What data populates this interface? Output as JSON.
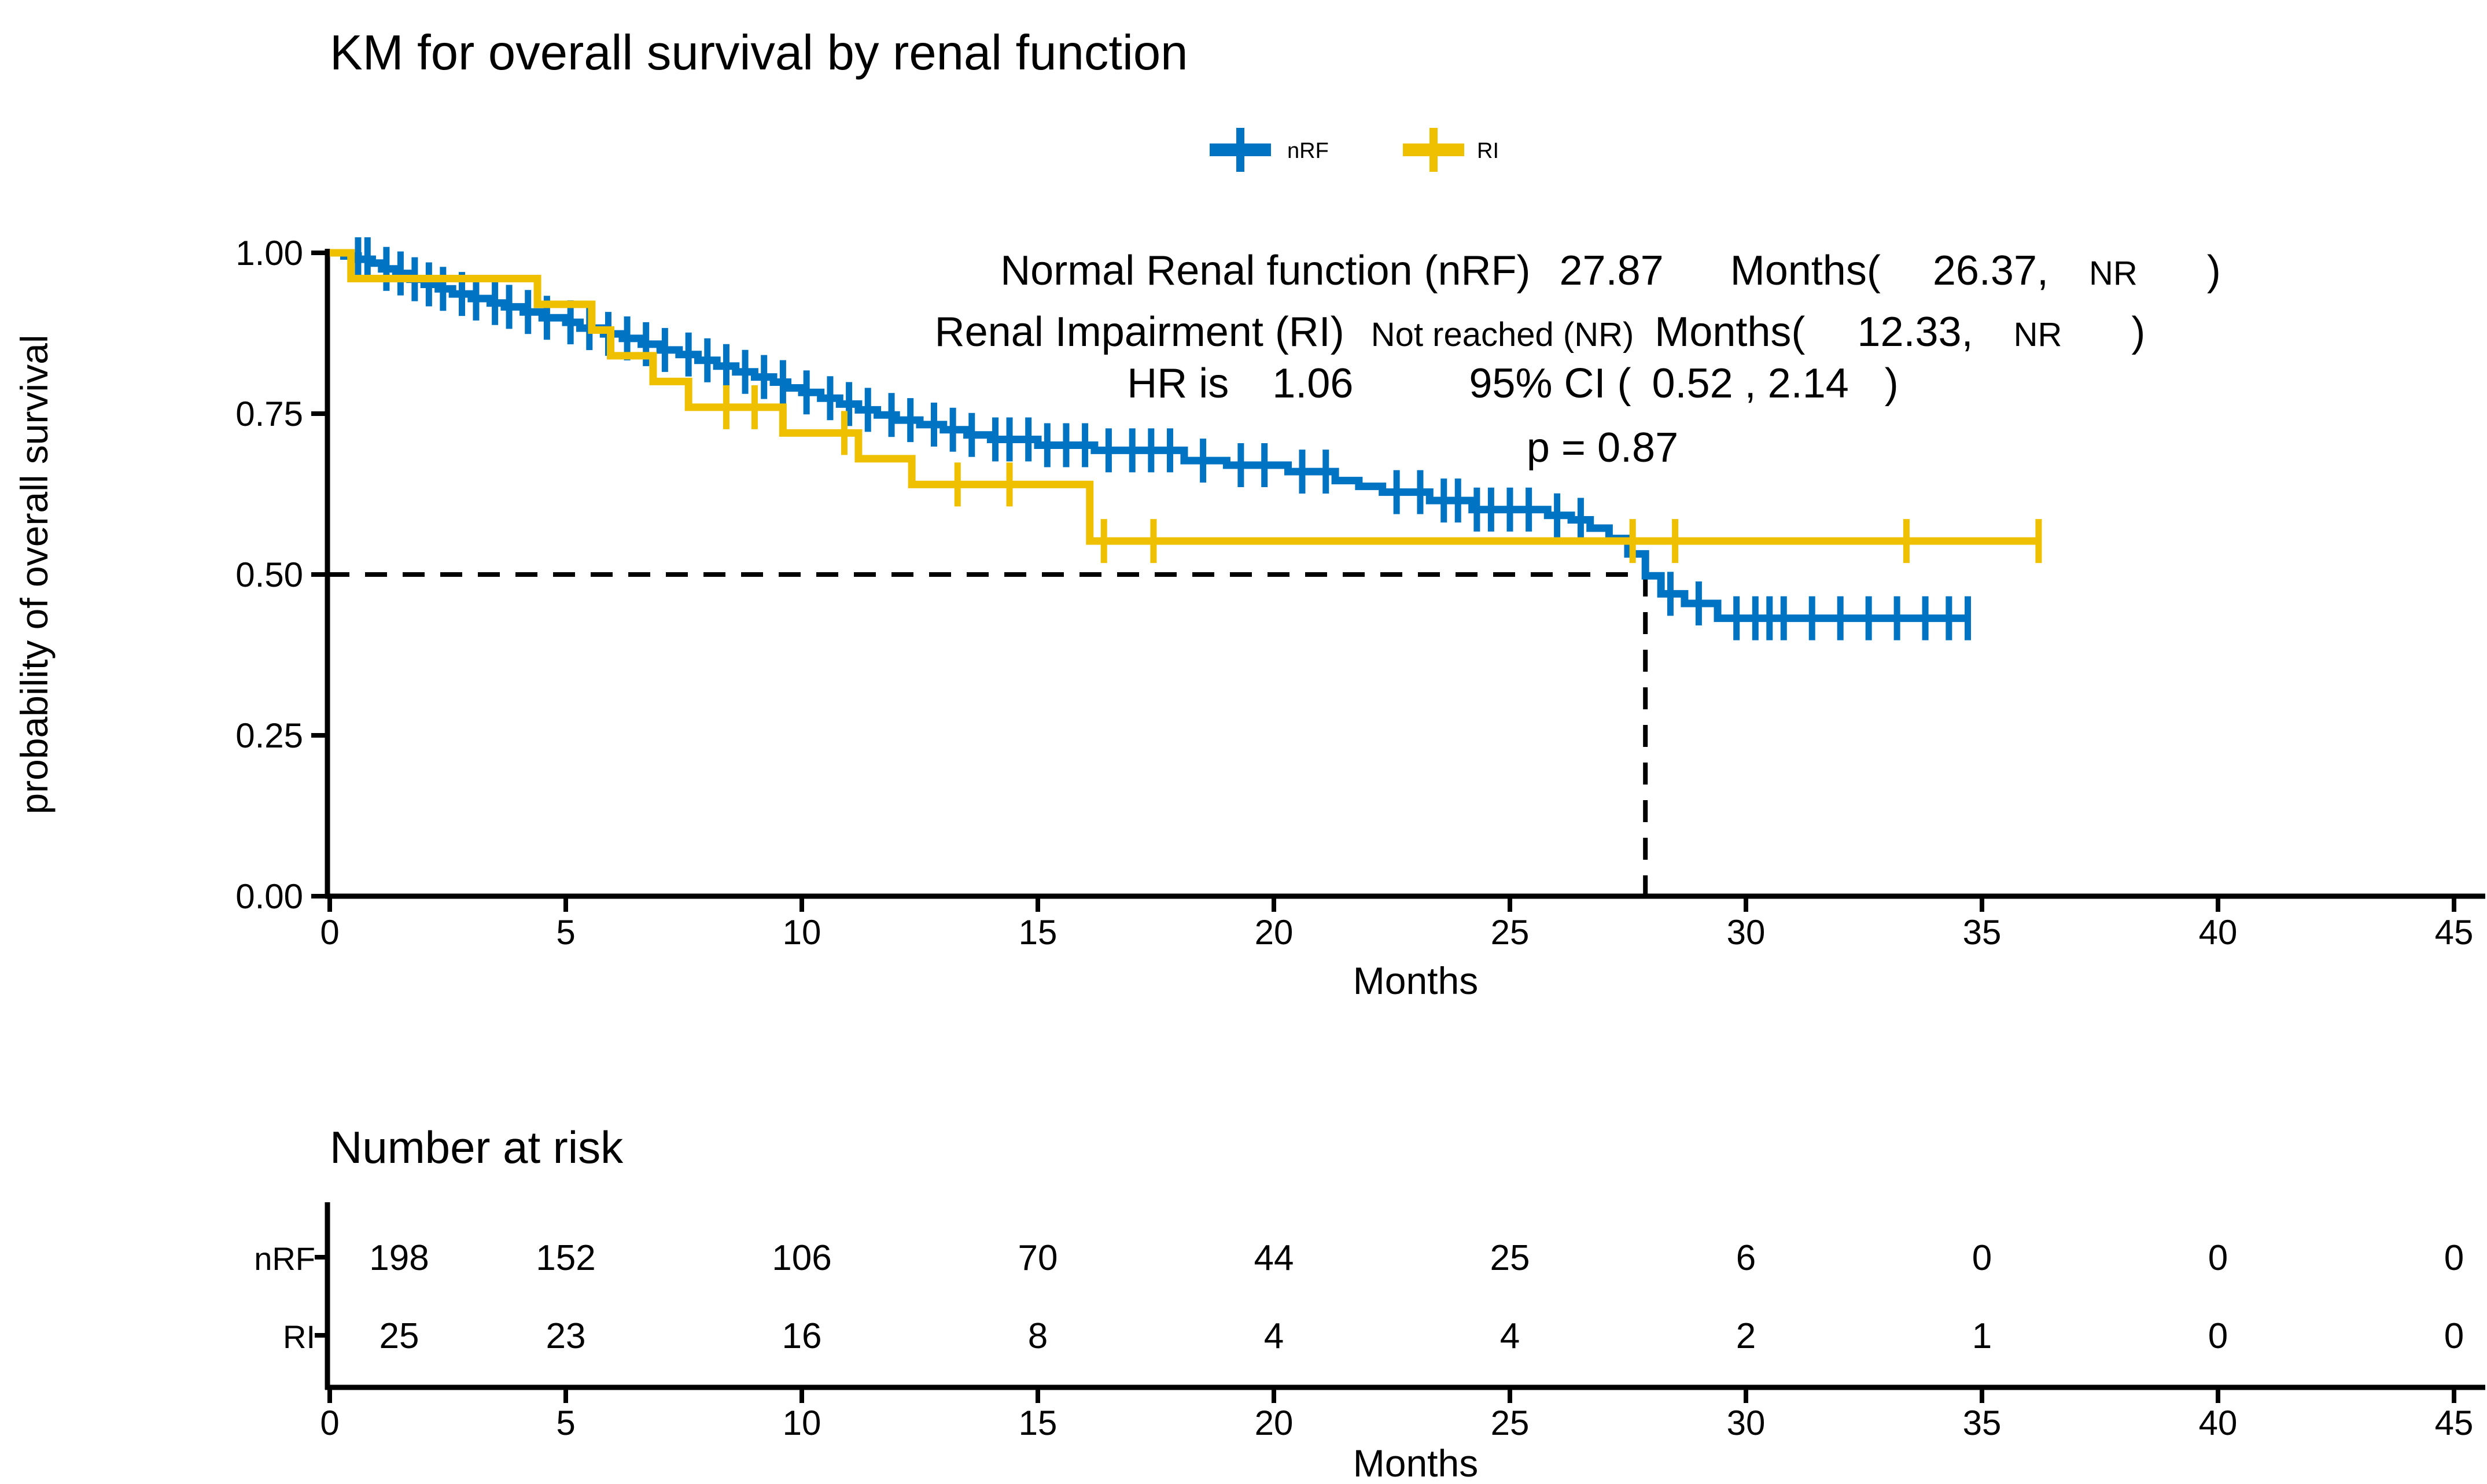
{
  "figure": {
    "title": "KM for overall survival by renal function"
  },
  "chart_data": {
    "type": "km_survival_step",
    "title": "KM for overall survival by renal function",
    "xlabel": "Months",
    "ylabel": "probability of overall survival",
    "x_ticks": [
      0,
      5,
      10,
      15,
      20,
      25,
      30,
      35,
      40,
      45
    ],
    "y_ticks": [
      "1.00",
      "0.75",
      "0.50",
      "0.25",
      "0.00"
    ],
    "xlim": [
      0,
      45
    ],
    "ylim": [
      0,
      1
    ],
    "grid": false,
    "legend_position": "top",
    "legend": [
      {
        "label": "nRF",
        "color": "#0073C2"
      },
      {
        "label": "RI",
        "color": "#EFC000"
      }
    ],
    "median_marker": {
      "x": 27.87,
      "y": 0.5
    },
    "series": [
      {
        "name": "nRF",
        "color": "#0073C2",
        "end_time": 34.7,
        "steps": [
          [
            0,
            1
          ],
          [
            0.3,
            0.995
          ],
          [
            0.6,
            0.99
          ],
          [
            0.9,
            0.984
          ],
          [
            1.1,
            0.975
          ],
          [
            1.4,
            0.968
          ],
          [
            1.7,
            0.959
          ],
          [
            2,
            0.951
          ],
          [
            2.3,
            0.944
          ],
          [
            2.6,
            0.936
          ],
          [
            3,
            0.929
          ],
          [
            3.4,
            0.922
          ],
          [
            3.7,
            0.916
          ],
          [
            4.1,
            0.908
          ],
          [
            4.5,
            0.899
          ],
          [
            5,
            0.892
          ],
          [
            5.3,
            0.883
          ],
          [
            5.8,
            0.874
          ],
          [
            6.2,
            0.867
          ],
          [
            6.6,
            0.858
          ],
          [
            7,
            0.849
          ],
          [
            7.4,
            0.842
          ],
          [
            7.8,
            0.833
          ],
          [
            8.2,
            0.824
          ],
          [
            8.6,
            0.815
          ],
          [
            9,
            0.807
          ],
          [
            9.4,
            0.799
          ],
          [
            9.7,
            0.79
          ],
          [
            10,
            0.783
          ],
          [
            10.4,
            0.774
          ],
          [
            10.8,
            0.765
          ],
          [
            11.2,
            0.756
          ],
          [
            11.6,
            0.748
          ],
          [
            12,
            0.74
          ],
          [
            12.5,
            0.733
          ],
          [
            13,
            0.725
          ],
          [
            13.5,
            0.717
          ],
          [
            14,
            0.71
          ],
          [
            15,
            0.701
          ],
          [
            16.2,
            0.693
          ],
          [
            18.1,
            0.677
          ],
          [
            19,
            0.67
          ],
          [
            20.3,
            0.66
          ],
          [
            21.3,
            0.646
          ],
          [
            21.8,
            0.637
          ],
          [
            22.3,
            0.628
          ],
          [
            23.3,
            0.615
          ],
          [
            24.2,
            0.601
          ],
          [
            25.8,
            0.592
          ],
          [
            26.3,
            0.585
          ],
          [
            26.7,
            0.572
          ],
          [
            27.1,
            0.556
          ],
          [
            27.5,
            0.532
          ],
          [
            27.87,
            0.498
          ],
          [
            28.2,
            0.47
          ],
          [
            28.7,
            0.455
          ],
          [
            29.4,
            0.432
          ]
        ],
        "censors": [
          0.6,
          0.8,
          1.2,
          1.5,
          1.8,
          2.1,
          2.4,
          2.8,
          3.1,
          3.5,
          3.8,
          4.2,
          4.6,
          5.1,
          5.5,
          5.9,
          6.3,
          6.7,
          7.1,
          7.6,
          8,
          8.4,
          8.8,
          9.2,
          9.6,
          10.1,
          10.6,
          11,
          11.4,
          11.9,
          12.3,
          12.8,
          13.2,
          13.6,
          14.1,
          14.4,
          14.8,
          15.2,
          15.6,
          16,
          16.5,
          17,
          17.4,
          17.8,
          18.5,
          19.3,
          19.8,
          20.6,
          21.1,
          22.6,
          23.1,
          23.6,
          23.9,
          24.3,
          24.6,
          25,
          25.4,
          26,
          26.5,
          28.4,
          29,
          29.8,
          30.2,
          30.5,
          30.8,
          31.4,
          32,
          32.6,
          33.2,
          33.8,
          34.3,
          34.7
        ]
      },
      {
        "name": "RI",
        "color": "#EFC000",
        "end_time": 36.2,
        "steps": [
          [
            0,
            1
          ],
          [
            0.45,
            0.96
          ],
          [
            4.4,
            0.92
          ],
          [
            5.55,
            0.88
          ],
          [
            5.95,
            0.84
          ],
          [
            6.85,
            0.8
          ],
          [
            7.6,
            0.76
          ],
          [
            9.6,
            0.72
          ],
          [
            11.2,
            0.68
          ],
          [
            12.33,
            0.64
          ],
          [
            16.1,
            0.552
          ]
        ],
        "censors": [
          8.4,
          9,
          10.9,
          13.3,
          14.4,
          16.4,
          17.45,
          27.6,
          28.5,
          33.4,
          36.2
        ]
      }
    ],
    "annotations": {
      "line1": {
        "label": "Normal Renal function (nRF)",
        "median": "27.87",
        "unit": "Months(",
        "ci_low": "26.37,",
        "ci_high": "NR",
        "close": ")"
      },
      "line2": {
        "label": "Renal Impairment (RI)",
        "median": "Not reached (NR)",
        "unit": "Months(",
        "ci_low": "12.33,",
        "ci_high": "NR",
        "close": ")"
      },
      "line3": {
        "hr_label": "HR is",
        "hr_value": "1.06",
        "ci_label": "95% CI (",
        "ci_value": "0.52 , 2.14",
        "close": ")"
      },
      "pvalue": "p = 0.87"
    },
    "risk_table": {
      "title": "Number at risk",
      "xlabel": "Months",
      "x_ticks": [
        0,
        5,
        10,
        15,
        20,
        25,
        30,
        35,
        40,
        45
      ],
      "rows": [
        {
          "label": "nRF",
          "color": "#0073C2",
          "values": [
            "198",
            "152",
            "106",
            "70",
            "44",
            "25",
            "6",
            "0",
            "0",
            "0"
          ]
        },
        {
          "label": "RI",
          "color": "#EFC000",
          "values": [
            "25",
            "23",
            "16",
            "8",
            "4",
            "4",
            "2",
            "1",
            "0",
            "0"
          ]
        }
      ]
    }
  }
}
